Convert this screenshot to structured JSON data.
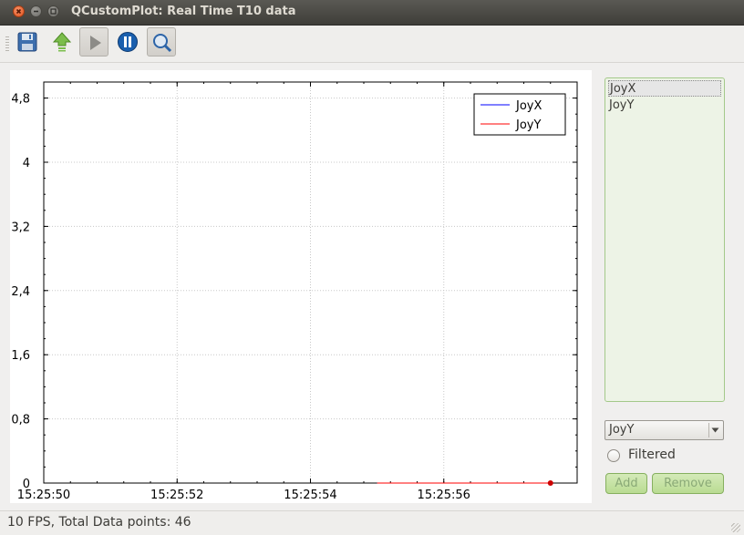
{
  "window": {
    "title": "QCustomPlot: Real Time T10 data"
  },
  "toolbar": {
    "buttons": [
      {
        "name": "save",
        "icon": "floppy-disk-icon"
      },
      {
        "name": "export",
        "icon": "green-up-arrow-icon"
      },
      {
        "name": "play",
        "icon": "play-icon"
      },
      {
        "name": "pause",
        "icon": "pause-icon"
      },
      {
        "name": "zoom",
        "icon": "magnifier-icon"
      }
    ]
  },
  "chart_data": {
    "type": "line",
    "title": "",
    "xlabel": "",
    "ylabel": "",
    "xlim": [
      0,
      8.0
    ],
    "ylim": [
      0,
      5.0
    ],
    "x_ticks": [
      "15:25:50",
      "15:25:52",
      "15:25:54",
      "15:25:56"
    ],
    "x_tick_values": [
      0,
      2,
      4,
      6
    ],
    "y_ticks": [
      "0",
      "0,8",
      "1,6",
      "2,4",
      "3,2",
      "4",
      "4,8"
    ],
    "y_tick_values": [
      0,
      0.8,
      1.6,
      2.4,
      3.2,
      4.0,
      4.8
    ],
    "grid": true,
    "legend_position": "top-right",
    "series": [
      {
        "name": "JoyX",
        "color": "#0000ff",
        "x": [
          5.0,
          7.6
        ],
        "values": [
          0,
          0
        ]
      },
      {
        "name": "JoyY",
        "color": "#ff0000",
        "x": [
          5.0,
          7.6
        ],
        "values": [
          0,
          0
        ]
      }
    ],
    "markers": [
      {
        "series": "JoyY",
        "x": 7.6,
        "y": 0,
        "color": "#cc0000"
      }
    ]
  },
  "side_panel": {
    "list_items": [
      "JoyX",
      "JoyY"
    ],
    "selected_index": 0,
    "combo_value": "JoyY",
    "filtered_label": "Filtered",
    "add_label": "Add",
    "remove_label": "Remove"
  },
  "status": {
    "text": "10 FPS, Total Data points: 46"
  },
  "colors": {
    "accent_green": "#a4c98a",
    "title_bar": "#3c3b37"
  }
}
